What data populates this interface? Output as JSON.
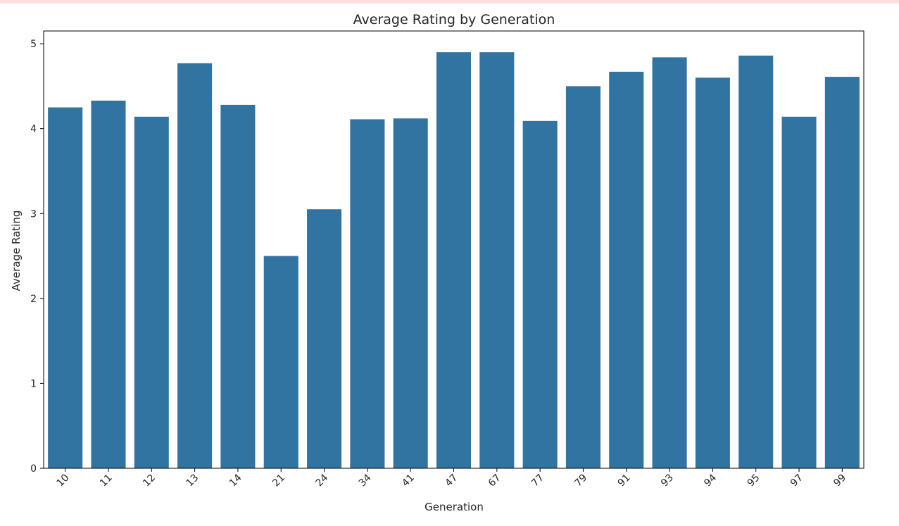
{
  "chart_data": {
    "type": "bar",
    "title": "Average Rating by Generation",
    "xlabel": "Generation",
    "ylabel": "Average Rating",
    "categories": [
      "10",
      "11",
      "12",
      "13",
      "14",
      "21",
      "24",
      "34",
      "41",
      "47",
      "67",
      "77",
      "79",
      "91",
      "93",
      "94",
      "95",
      "97",
      "99"
    ],
    "values": [
      4.25,
      4.33,
      4.14,
      4.77,
      4.28,
      2.5,
      3.05,
      4.11,
      4.12,
      4.9,
      4.9,
      4.09,
      4.5,
      4.67,
      4.84,
      4.6,
      4.86,
      4.14,
      4.61
    ],
    "ylim": [
      0,
      5.15
    ],
    "yticks": [
      0,
      1,
      2,
      3,
      4,
      5
    ],
    "grid": false,
    "bar_color": "#3274a1"
  }
}
